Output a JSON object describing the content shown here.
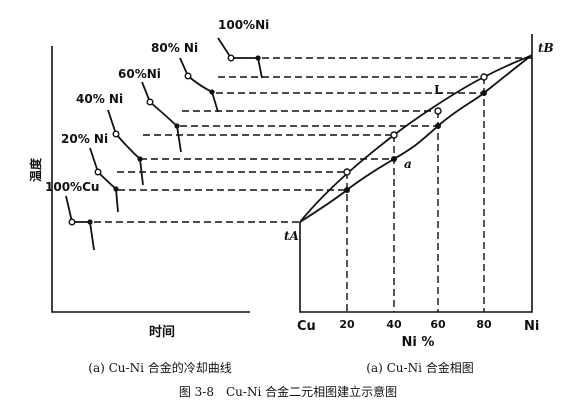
{
  "left_chart": {
    "y_label": "温度",
    "x_label": "时间",
    "curve_labels": [
      "100%Ni",
      "80% Ni",
      "60%Ni",
      "40% Ni",
      "20% Ni",
      "100%Cu"
    ]
  },
  "right_chart": {
    "t_a": "tA",
    "t_b": "tB",
    "liquidus_label": "L",
    "solidus_label": "a",
    "x_axis_left": "Cu",
    "x_axis_right": "Ni",
    "x_ticks": [
      "20",
      "40",
      "60",
      "80"
    ],
    "x_label": "Ni %"
  },
  "captions": {
    "left": "(a) Cu-Ni 合金的冷却曲线",
    "right": "(a) Cu-Ni 合金相图",
    "figure": "图 3-8　Cu-Ni 合金二元相图建立示意图"
  }
}
